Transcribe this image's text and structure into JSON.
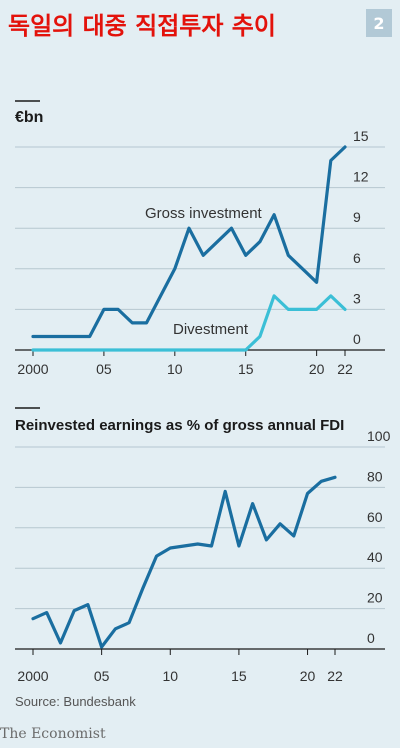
{
  "header": {
    "title": "독일의 대중 직접투자 추이",
    "badge": "2"
  },
  "source": "Source: Bundesbank",
  "brand": "The Economist",
  "colors": {
    "dark_blue": "#1a6ea0",
    "light_blue": "#3bbfd6",
    "grid": "#b6c7d0",
    "title_red": "#e3120b"
  },
  "chart_data": [
    {
      "type": "line",
      "title": "€bn",
      "ylim": [
        0,
        15
      ],
      "yticks": [
        0,
        3,
        6,
        9,
        12,
        15
      ],
      "xlim": [
        2000,
        2022
      ],
      "xtick_values": [
        2000,
        2005,
        2010,
        2015,
        2020,
        2022
      ],
      "xtick_labels": [
        "2000",
        "05",
        "10",
        "15",
        "20",
        "22"
      ],
      "grid": true,
      "series": [
        {
          "name": "Gross investment",
          "color": "#1a6ea0",
          "x": [
            2000,
            2001,
            2002,
            2003,
            2004,
            2005,
            2006,
            2007,
            2008,
            2009,
            2010,
            2011,
            2012,
            2013,
            2014,
            2015,
            2016,
            2017,
            2018,
            2019,
            2020,
            2021,
            2022
          ],
          "values": [
            1,
            1,
            1,
            1,
            1,
            3,
            3,
            2,
            2,
            4,
            6,
            9,
            7,
            8,
            9,
            7,
            8,
            10,
            7,
            6,
            5,
            14,
            15
          ]
        },
        {
          "name": "Divestment",
          "color": "#3bbfd6",
          "x": [
            2000,
            2001,
            2002,
            2003,
            2004,
            2005,
            2006,
            2007,
            2008,
            2009,
            2010,
            2011,
            2012,
            2013,
            2014,
            2015,
            2016,
            2017,
            2018,
            2019,
            2020,
            2021,
            2022
          ],
          "values": [
            0,
            0,
            0,
            0,
            0,
            0,
            0,
            0,
            0,
            0,
            0,
            0,
            0,
            0,
            0,
            0,
            1,
            4,
            3,
            3,
            3,
            4,
            3
          ]
        }
      ]
    },
    {
      "type": "line",
      "title": "Reinvested earnings as % of gross annual FDI",
      "ylim": [
        0,
        100
      ],
      "yticks": [
        0,
        20,
        40,
        60,
        80,
        100
      ],
      "xlim": [
        2000,
        2022
      ],
      "xtick_values": [
        2000,
        2005,
        2010,
        2015,
        2020,
        2022
      ],
      "xtick_labels": [
        "2000",
        "05",
        "10",
        "15",
        "20",
        "22"
      ],
      "grid": true,
      "series": [
        {
          "color": "#1a6ea0",
          "x": [
            2000,
            2001,
            2002,
            2003,
            2004,
            2005,
            2006,
            2007,
            2008,
            2009,
            2010,
            2011,
            2012,
            2013,
            2014,
            2015,
            2016,
            2017,
            2018,
            2019,
            2020,
            2021,
            2022
          ],
          "values": [
            15,
            18,
            3,
            19,
            22,
            1,
            10,
            13,
            30,
            46,
            50,
            51,
            52,
            51,
            78,
            51,
            72,
            54,
            62,
            56,
            77,
            83,
            85
          ]
        }
      ]
    }
  ]
}
